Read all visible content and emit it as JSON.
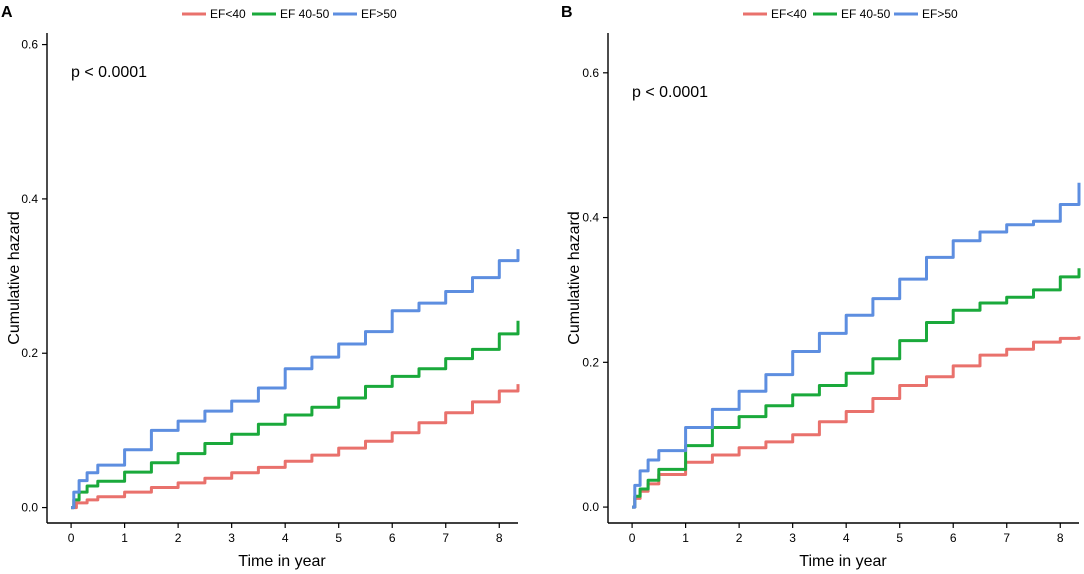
{
  "figure": {
    "colors": {
      "EF<40": "#e9716c",
      "EF 40-50": "#1aa93b",
      "EF>50": "#5d8ee0"
    }
  },
  "chart_data": [
    {
      "panel_label": "A",
      "type": "line",
      "step": true,
      "xlabel": "Time in year",
      "ylabel": "Cumulative hazard",
      "annotation": "p < 0.0001",
      "legend_position": "top",
      "xticks": [
        0,
        1,
        2,
        3,
        4,
        5,
        6,
        7,
        8
      ],
      "yticks": [
        0.0,
        0.2,
        0.4,
        0.6
      ],
      "ytick_labels": [
        "0.0",
        "0.2",
        "0.4",
        "0.6"
      ],
      "xlim": [
        -0.45,
        8.35
      ],
      "ylim": [
        -0.02,
        0.615
      ],
      "series": [
        {
          "name": "EF<40",
          "x": [
            0,
            0.1,
            0.3,
            0.5,
            1,
            1.5,
            2,
            2.5,
            3,
            3.5,
            4,
            4.5,
            5,
            5.5,
            6,
            6.5,
            7,
            7.5,
            8,
            8.35
          ],
          "y": [
            0,
            0.006,
            0.01,
            0.014,
            0.02,
            0.026,
            0.032,
            0.038,
            0.045,
            0.052,
            0.06,
            0.068,
            0.077,
            0.086,
            0.097,
            0.11,
            0.123,
            0.137,
            0.151,
            0.16
          ]
        },
        {
          "name": "EF 40-50",
          "x": [
            0,
            0.05,
            0.15,
            0.3,
            0.5,
            1,
            1.5,
            2,
            2.5,
            3,
            3.5,
            4,
            4.5,
            5,
            5.5,
            6,
            6.5,
            7,
            7.5,
            8,
            8.35
          ],
          "y": [
            0,
            0.01,
            0.02,
            0.028,
            0.034,
            0.046,
            0.058,
            0.07,
            0.083,
            0.095,
            0.108,
            0.12,
            0.13,
            0.142,
            0.157,
            0.17,
            0.18,
            0.193,
            0.205,
            0.225,
            0.242
          ]
        },
        {
          "name": "EF>50",
          "x": [
            0,
            0.05,
            0.15,
            0.3,
            0.5,
            1,
            1.5,
            2,
            2.5,
            3,
            3.5,
            4,
            4.5,
            5,
            5.5,
            6,
            6.5,
            7,
            7.5,
            8,
            8.35
          ],
          "y": [
            0,
            0.02,
            0.035,
            0.045,
            0.055,
            0.075,
            0.1,
            0.112,
            0.125,
            0.138,
            0.155,
            0.18,
            0.195,
            0.212,
            0.228,
            0.255,
            0.265,
            0.28,
            0.298,
            0.32,
            0.335
          ]
        }
      ]
    },
    {
      "panel_label": "B",
      "type": "line",
      "step": true,
      "xlabel": "Time in year",
      "ylabel": "Cumulative hazard",
      "annotation": "p < 0.0001",
      "legend_position": "top",
      "xticks": [
        0,
        1,
        2,
        3,
        4,
        5,
        6,
        7,
        8
      ],
      "yticks": [
        0.0,
        0.2,
        0.4,
        0.6
      ],
      "ytick_labels": [
        "0.0",
        "0.2",
        "0.4",
        "0.6"
      ],
      "xlim": [
        -0.45,
        8.35
      ],
      "ylim": [
        -0.022,
        0.655
      ],
      "series": [
        {
          "name": "EF<40",
          "x": [
            0,
            0.05,
            0.15,
            0.3,
            0.5,
            1,
            1.5,
            2,
            2.5,
            3,
            3.5,
            4,
            4.5,
            5,
            5.5,
            6,
            6.5,
            7,
            7.5,
            8,
            8.35
          ],
          "y": [
            0,
            0.012,
            0.022,
            0.032,
            0.045,
            0.062,
            0.072,
            0.082,
            0.09,
            0.1,
            0.118,
            0.132,
            0.15,
            0.168,
            0.18,
            0.195,
            0.21,
            0.218,
            0.228,
            0.233,
            0.236
          ]
        },
        {
          "name": "EF 40-50",
          "x": [
            0,
            0.05,
            0.15,
            0.3,
            0.5,
            1,
            1.5,
            2,
            2.5,
            3,
            3.5,
            4,
            4.5,
            5,
            5.5,
            6,
            6.5,
            7,
            7.5,
            8,
            8.35
          ],
          "y": [
            0,
            0.015,
            0.025,
            0.037,
            0.052,
            0.085,
            0.11,
            0.125,
            0.14,
            0.155,
            0.168,
            0.185,
            0.205,
            0.23,
            0.255,
            0.272,
            0.282,
            0.29,
            0.3,
            0.318,
            0.33
          ]
        },
        {
          "name": "EF>50",
          "x": [
            0,
            0.05,
            0.15,
            0.3,
            0.5,
            1,
            1.5,
            2,
            2.5,
            3,
            3.5,
            4,
            4.5,
            5,
            5.5,
            6,
            6.5,
            7,
            7.5,
            8,
            8.35
          ],
          "y": [
            0,
            0.03,
            0.05,
            0.065,
            0.078,
            0.11,
            0.135,
            0.16,
            0.183,
            0.215,
            0.24,
            0.265,
            0.288,
            0.315,
            0.345,
            0.368,
            0.38,
            0.39,
            0.395,
            0.418,
            0.448
          ]
        }
      ]
    }
  ]
}
